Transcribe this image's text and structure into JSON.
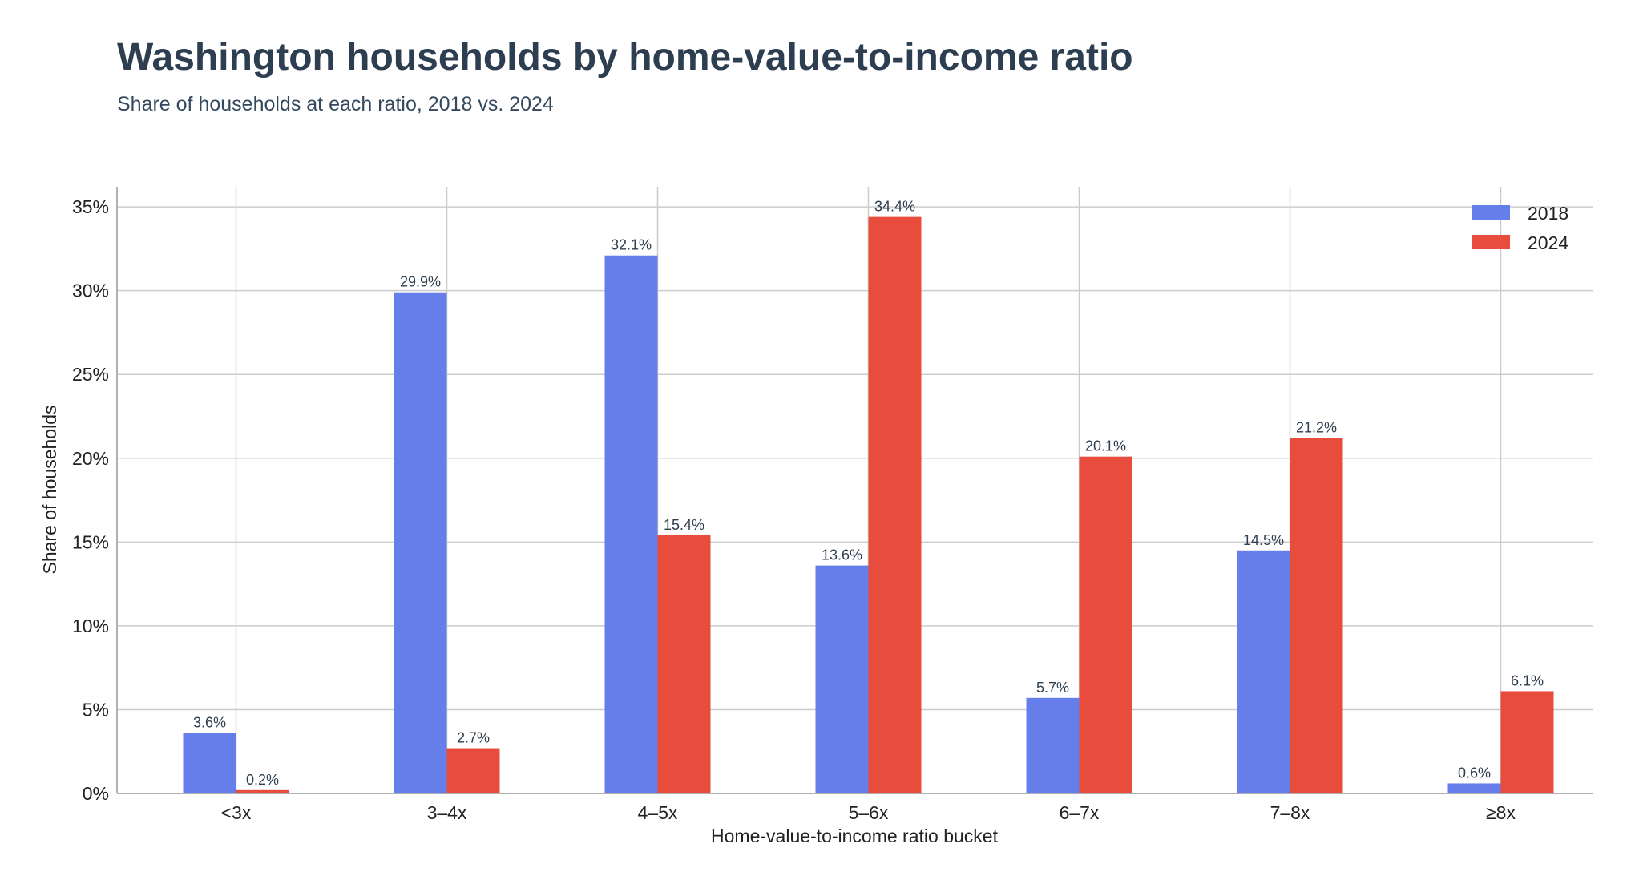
{
  "chart_data": {
    "type": "bar",
    "title": "Washington households by home-value-to-income ratio",
    "subtitle": "Share of households at each ratio, 2018 vs. 2024",
    "xlabel": "Home-value-to-income ratio bucket",
    "ylabel": "Share of households",
    "categories": [
      "<3x",
      "3–4x",
      "4–5x",
      "5–6x",
      "6–7x",
      "7–8x",
      "≥8x"
    ],
    "series": [
      {
        "name": "2018",
        "color": "#667eea",
        "values": [
          3.6,
          29.9,
          32.1,
          13.6,
          5.7,
          14.5,
          0.6
        ]
      },
      {
        "name": "2024",
        "color": "#e74c3c",
        "values": [
          0.2,
          2.7,
          15.4,
          34.4,
          20.1,
          21.2,
          6.1
        ]
      }
    ],
    "value_label_suffix": "%",
    "ylim": [
      0,
      36.2
    ],
    "yticks": [
      0,
      5,
      10,
      15,
      20,
      25,
      30,
      35
    ],
    "ytick_labels": [
      "0%",
      "5%",
      "10%",
      "15%",
      "20%",
      "25%",
      "30%",
      "35%"
    ],
    "grid": true,
    "legend_position": "top-right"
  }
}
